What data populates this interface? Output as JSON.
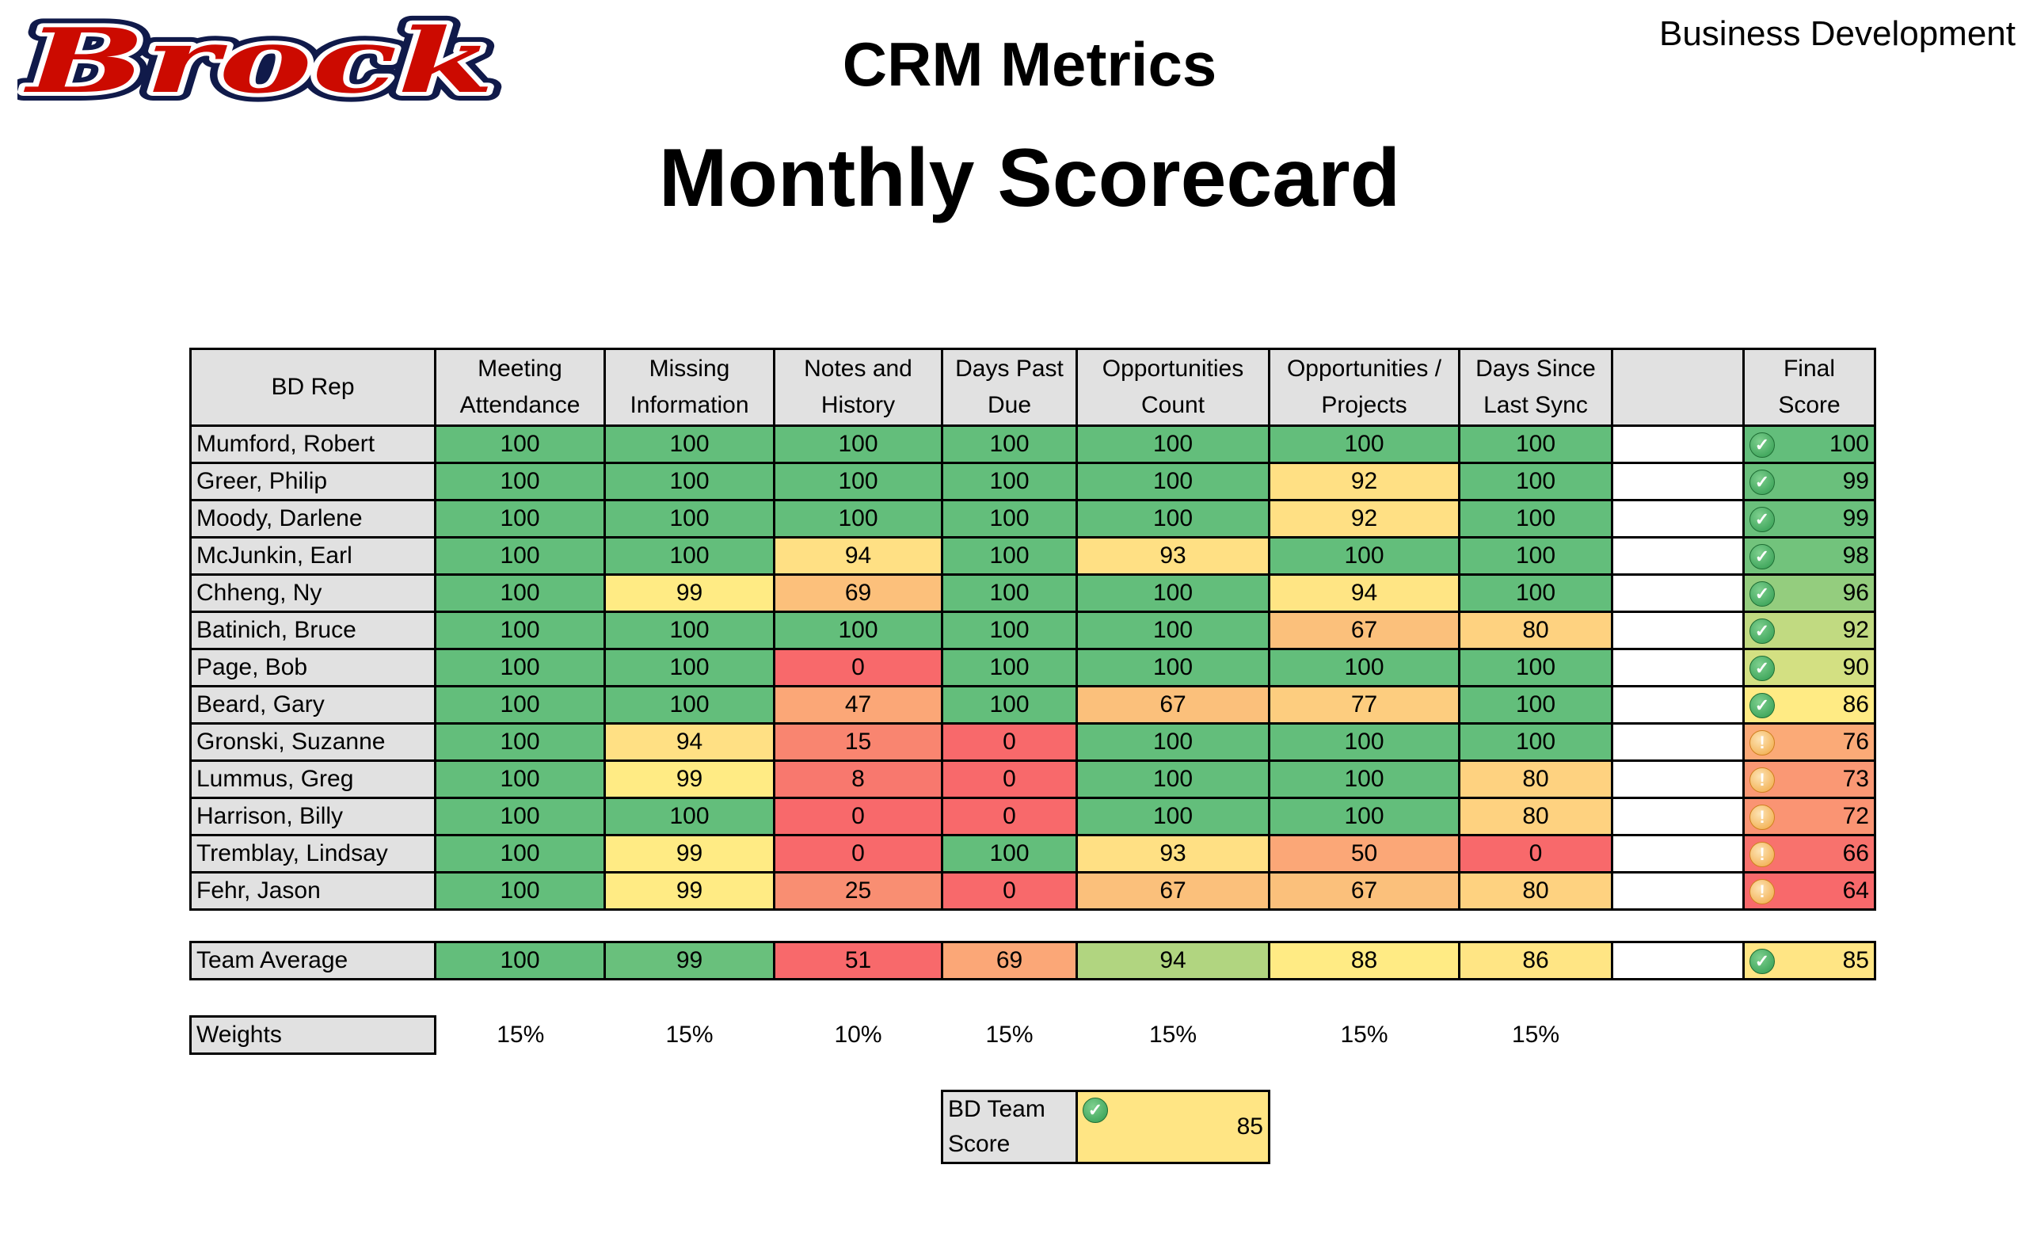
{
  "logo": {
    "text": "Brock",
    "colors": {
      "fill": "#CC0A00",
      "inner_outline": "#FFFFFF",
      "outer_outline": "#101A4A"
    }
  },
  "header": {
    "subtitle": "CRM Metrics",
    "title": "Monthly Scorecard",
    "department": "Business Development"
  },
  "palette": {
    "green": "#63BE7B",
    "yellow": "#FFEB84",
    "red": "#F8696B",
    "header_gray": "#E1E1E1"
  },
  "table": {
    "columns": [
      "BD Rep",
      "Meeting Attendance",
      "Missing Information",
      "Notes and History",
      "Days Past Due",
      "Opportunities Count",
      "Opportunities / Projects",
      "Days Since Last Sync",
      "",
      "Final Score"
    ],
    "columns_lines": [
      [
        "BD Rep"
      ],
      [
        "Meeting",
        "Attendance"
      ],
      [
        "Missing",
        "Information"
      ],
      [
        "Notes and",
        "History"
      ],
      [
        "Days Past",
        "Due"
      ],
      [
        "Opportunities",
        "Count"
      ],
      [
        "Opportunities /",
        "Projects"
      ],
      [
        "Days Since",
        "Last Sync"
      ],
      [
        ""
      ],
      [
        "Final",
        "Score"
      ]
    ],
    "rows": [
      {
        "name": "Mumford, Robert",
        "scores": [
          100,
          100,
          100,
          100,
          100,
          100,
          100
        ],
        "colors": [
          "#63BE7B",
          "#63BE7B",
          "#63BE7B",
          "#63BE7B",
          "#63BE7B",
          "#63BE7B",
          "#63BE7B"
        ],
        "final": 100,
        "final_color": "#63BE7B",
        "status": "check"
      },
      {
        "name": "Greer, Philip",
        "scores": [
          100,
          100,
          100,
          100,
          100,
          92,
          100
        ],
        "colors": [
          "#63BE7B",
          "#63BE7B",
          "#63BE7B",
          "#63BE7B",
          "#63BE7B",
          "#FFE084",
          "#63BE7B"
        ],
        "final": 99,
        "final_color": "#6AC07C",
        "status": "check"
      },
      {
        "name": "Moody, Darlene",
        "scores": [
          100,
          100,
          100,
          100,
          100,
          92,
          100
        ],
        "colors": [
          "#63BE7B",
          "#63BE7B",
          "#63BE7B",
          "#63BE7B",
          "#63BE7B",
          "#FFE084",
          "#63BE7B"
        ],
        "final": 99,
        "final_color": "#6AC07C",
        "status": "check"
      },
      {
        "name": "McJunkin, Earl",
        "scores": [
          100,
          100,
          94,
          100,
          93,
          100,
          100
        ],
        "colors": [
          "#63BE7B",
          "#63BE7B",
          "#FFE084",
          "#63BE7B",
          "#FFE084",
          "#63BE7B",
          "#63BE7B"
        ],
        "final": 98,
        "final_color": "#72C37C",
        "status": "check"
      },
      {
        "name": "Chheng, Ny",
        "scores": [
          100,
          99,
          69,
          100,
          100,
          94,
          100
        ],
        "colors": [
          "#63BE7B",
          "#FFEB84",
          "#FCC07B",
          "#63BE7B",
          "#63BE7B",
          "#FFE584",
          "#63BE7B"
        ],
        "final": 96,
        "final_color": "#94CD7E",
        "status": "check"
      },
      {
        "name": "Batinich, Bruce",
        "scores": [
          100,
          100,
          100,
          100,
          100,
          67,
          80
        ],
        "colors": [
          "#63BE7B",
          "#63BE7B",
          "#63BE7B",
          "#63BE7B",
          "#63BE7B",
          "#FBC07B",
          "#FED280"
        ],
        "final": 92,
        "final_color": "#C1DA81",
        "status": "check"
      },
      {
        "name": "Page, Bob",
        "scores": [
          100,
          100,
          0,
          100,
          100,
          100,
          100
        ],
        "colors": [
          "#63BE7B",
          "#63BE7B",
          "#F8696B",
          "#63BE7B",
          "#63BE7B",
          "#63BE7B",
          "#63BE7B"
        ],
        "final": 90,
        "final_color": "#D3E082",
        "status": "check"
      },
      {
        "name": "Beard, Gary",
        "scores": [
          100,
          100,
          47,
          100,
          67,
          77,
          100
        ],
        "colors": [
          "#63BE7B",
          "#63BE7B",
          "#FBA777",
          "#63BE7B",
          "#FBC07B",
          "#FDCD7F",
          "#63BE7B"
        ],
        "final": 86,
        "final_color": "#FFEB84",
        "status": "check"
      },
      {
        "name": "Gronski, Suzanne",
        "scores": [
          100,
          94,
          15,
          0,
          100,
          100,
          100
        ],
        "colors": [
          "#63BE7B",
          "#FFE084",
          "#F98570",
          "#F8696B",
          "#63BE7B",
          "#63BE7B",
          "#63BE7B"
        ],
        "final": 76,
        "final_color": "#FBAA77",
        "status": "warning"
      },
      {
        "name": "Lummus, Greg",
        "scores": [
          100,
          99,
          8,
          0,
          100,
          100,
          80
        ],
        "colors": [
          "#63BE7B",
          "#FFEB84",
          "#F8786E",
          "#F8696B",
          "#63BE7B",
          "#63BE7B",
          "#FED280"
        ],
        "final": 73,
        "final_color": "#FA9874",
        "status": "warning"
      },
      {
        "name": "Harrison, Billy",
        "scores": [
          100,
          100,
          0,
          0,
          100,
          100,
          80
        ],
        "colors": [
          "#63BE7B",
          "#63BE7B",
          "#F8696B",
          "#F8696B",
          "#63BE7B",
          "#63BE7B",
          "#FED280"
        ],
        "final": 72,
        "final_color": "#FA9473",
        "status": "warning"
      },
      {
        "name": "Tremblay, Lindsay",
        "scores": [
          100,
          99,
          0,
          100,
          93,
          50,
          0
        ],
        "colors": [
          "#63BE7B",
          "#FFEB84",
          "#F8696B",
          "#63BE7B",
          "#FFE084",
          "#FBA777",
          "#F8696B"
        ],
        "final": 66,
        "final_color": "#F8726D",
        "status": "warning"
      },
      {
        "name": "Fehr, Jason",
        "scores": [
          100,
          99,
          25,
          0,
          67,
          67,
          80
        ],
        "colors": [
          "#63BE7B",
          "#FFEB84",
          "#F98E72",
          "#F8696B",
          "#FBC07B",
          "#FBC07B",
          "#FED280"
        ],
        "final": 64,
        "final_color": "#F8696B",
        "status": "warning"
      }
    ]
  },
  "team_average": {
    "label": "Team Average",
    "scores": [
      100,
      99,
      51,
      69,
      94,
      88,
      86
    ],
    "colors": [
      "#63BE7B",
      "#69C07C",
      "#F8696B",
      "#FBA777",
      "#B1D580",
      "#FFEB84",
      "#FFE584"
    ],
    "final": 85,
    "final_color": "#FFE584",
    "status": "check"
  },
  "weights": {
    "label": "Weights",
    "values": [
      "15%",
      "15%",
      "10%",
      "15%",
      "15%",
      "15%",
      "15%"
    ]
  },
  "team_score": {
    "label": "BD Team Score",
    "value": 85,
    "color": "#FFE584",
    "status": "check"
  }
}
